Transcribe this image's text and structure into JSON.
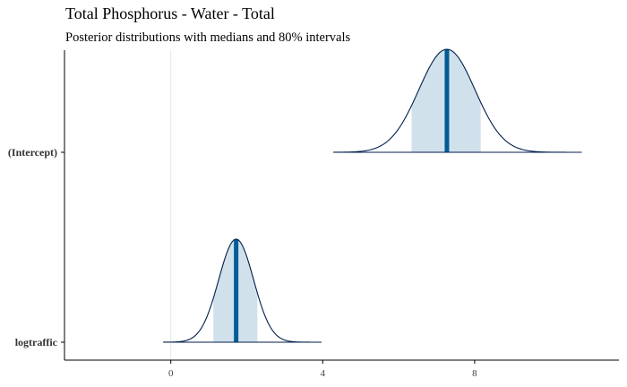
{
  "chart_data": {
    "type": "area",
    "title": "Total Phosphorus - Water - Total",
    "subtitle": "Posterior distributions with medians and 80% intervals",
    "xlabel": "",
    "ylabel": "",
    "xlim": [
      -2.8,
      11.8
    ],
    "x_ticks": [
      0,
      4,
      8
    ],
    "x_tick_labels": [
      "0",
      "4",
      "8"
    ],
    "reference_line_x": 0,
    "grid": false,
    "legend": "none",
    "colors": {
      "fill": "#d1e1ec",
      "outline": "#011f4b",
      "median": "#005b96",
      "ref_line": "#e6e6e6",
      "axis": "#000000"
    },
    "series": [
      {
        "name": "(Intercept)",
        "median": 7.27,
        "interval_80": [
          6.34,
          8.16
        ],
        "support": [
          4.28,
          10.82
        ],
        "sd": 0.74
      },
      {
        "name": "logtraffic",
        "median": 1.72,
        "interval_80": [
          1.12,
          2.28
        ],
        "support": [
          -0.2,
          3.97
        ],
        "sd": 0.46
      }
    ]
  }
}
